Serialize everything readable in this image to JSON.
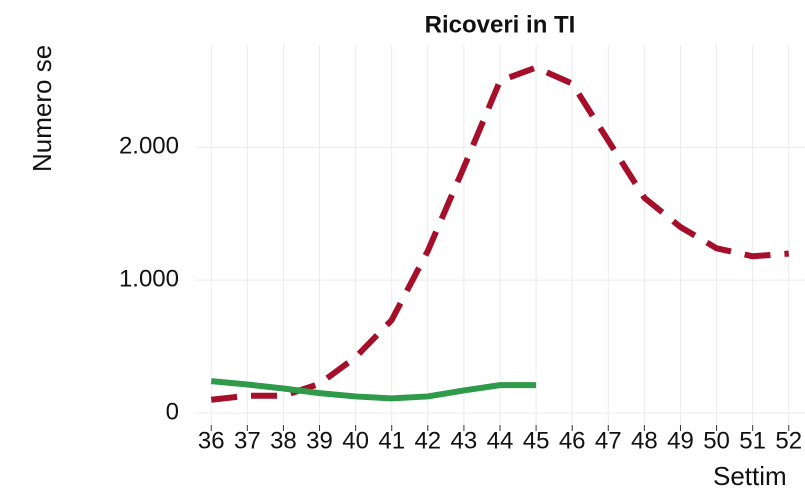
{
  "chart_data": {
    "type": "line",
    "title": "Ricoveri in TI",
    "y_label": "Numero se",
    "x_label": "Settim",
    "x": [
      36,
      37,
      38,
      39,
      40,
      41,
      42,
      43,
      44,
      45,
      46,
      47,
      48,
      49,
      50,
      51,
      52
    ],
    "series": [
      {
        "color": "#a50f2a",
        "dash": true,
        "values": [
          100,
          130,
          130,
          220,
          420,
          700,
          1220,
          1850,
          2500,
          2600,
          2480,
          2050,
          1620,
          1400,
          1240,
          1180,
          1200
        ]
      },
      {
        "color": "#2e9a4a",
        "dash": false,
        "values": [
          240,
          215,
          185,
          150,
          125,
          110,
          125,
          170,
          210,
          210,
          null,
          null,
          null,
          null,
          null,
          null,
          null
        ]
      }
    ],
    "xlim": [
      35.55,
      52.45
    ],
    "xticks": [
      36,
      37,
      38,
      39,
      40,
      41,
      42,
      43,
      44,
      45,
      46,
      47,
      48,
      49,
      50,
      51,
      52
    ],
    "ylim": [
      -90,
      2770
    ],
    "yticks": [
      0,
      {
        "value": 1000,
        "label": "1.000"
      },
      {
        "value": 2000,
        "label": "2.000"
      }
    ],
    "grid": true
  }
}
